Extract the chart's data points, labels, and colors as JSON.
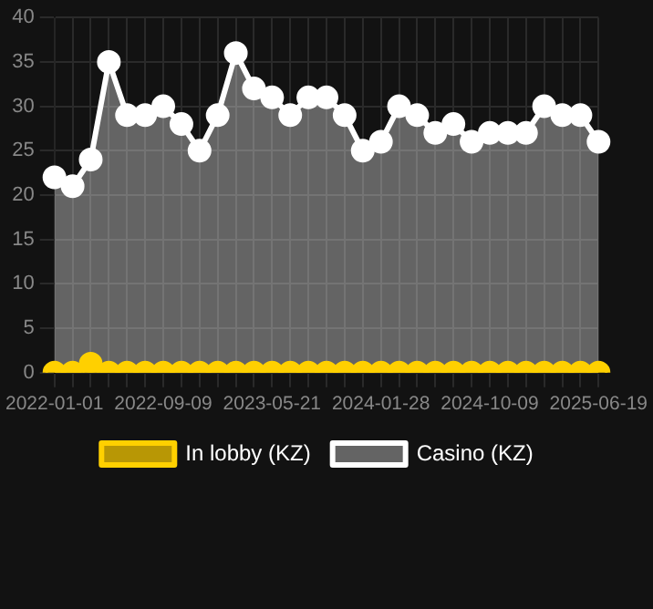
{
  "chart_data": {
    "type": "area",
    "categories": [
      "2022-01-01",
      null,
      null,
      null,
      null,
      null,
      "2022-09-09",
      null,
      null,
      null,
      null,
      null,
      "2023-05-21",
      null,
      null,
      null,
      null,
      null,
      "2024-01-28",
      null,
      null,
      null,
      null,
      null,
      "2024-10-09",
      null,
      null,
      null,
      null,
      null,
      "2025-06-19"
    ],
    "series": [
      {
        "name": "In lobby (KZ)",
        "color": "#ffd000",
        "values": [
          0,
          0,
          1,
          0,
          0,
          0,
          0,
          0,
          0,
          0,
          0,
          0,
          0,
          0,
          0,
          0,
          0,
          0,
          0,
          0,
          0,
          0,
          0,
          0,
          0,
          0,
          0,
          0,
          0,
          0,
          0
        ]
      },
      {
        "name": "Casino (KZ)",
        "color": "#ffffff",
        "values": [
          22,
          21,
          24,
          35,
          29,
          29,
          30,
          28,
          25,
          29,
          36,
          32,
          31,
          29,
          31,
          31,
          29,
          25,
          26,
          30,
          29,
          27,
          28,
          26,
          27,
          27,
          27,
          30,
          29,
          29,
          26
        ]
      }
    ],
    "ylim": [
      0,
      40
    ],
    "yticks": [
      0,
      5,
      10,
      15,
      20,
      25,
      30,
      35,
      40
    ],
    "grid": true,
    "legend": "bottom",
    "marker": "circle"
  }
}
